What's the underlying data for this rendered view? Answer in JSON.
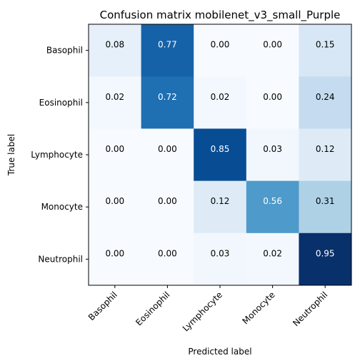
{
  "chart_data": {
    "type": "heatmap",
    "title": "Confusion matrix mobilenet_v3_small_Purple",
    "xlabel": "Predicted label",
    "ylabel": "True label",
    "x_categories": [
      "Basophil",
      "Eosinophil",
      "Lymphocyte",
      "Monocyte",
      "Neutrophil"
    ],
    "y_categories": [
      "Basophil",
      "Eosinophil",
      "Lymphocyte",
      "Monocyte",
      "Neutrophil"
    ],
    "values": [
      [
        0.08,
        0.77,
        0.0,
        0.0,
        0.15
      ],
      [
        0.02,
        0.72,
        0.02,
        0.0,
        0.24
      ],
      [
        0.0,
        0.0,
        0.85,
        0.03,
        0.12
      ],
      [
        0.0,
        0.0,
        0.12,
        0.56,
        0.31
      ],
      [
        0.0,
        0.0,
        0.03,
        0.02,
        0.95
      ]
    ],
    "value_range": [
      0,
      0.95
    ],
    "colormap": "Blues",
    "grid": false
  }
}
